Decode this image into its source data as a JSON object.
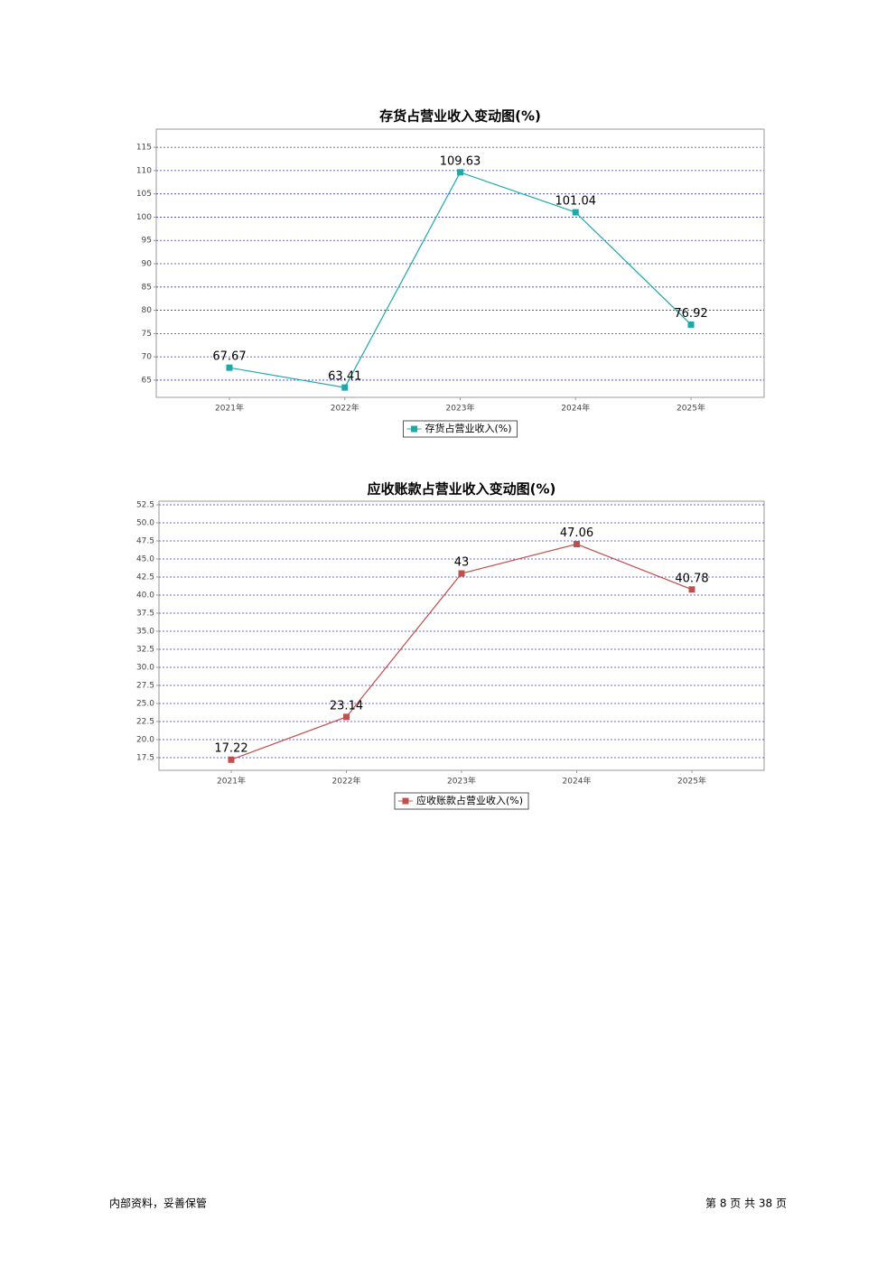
{
  "chart_data": [
    {
      "type": "line",
      "title": "存货占营业收入变动图(%)",
      "categories": [
        "2021年",
        "2022年",
        "2023年",
        "2024年",
        "2025年"
      ],
      "series": [
        {
          "name": "存货占营业收入(%)",
          "color": "#1fa8a8",
          "values": [
            67.67,
            63.41,
            109.63,
            101.04,
            76.92
          ]
        }
      ],
      "ylim": [
        61.3,
        118.9
      ],
      "yticks": [
        65,
        70,
        75,
        80,
        85,
        90,
        95,
        100,
        105,
        110,
        115
      ],
      "grid": true,
      "legend": "bottom"
    },
    {
      "type": "line",
      "title": "应收账款占营业收入变动图(%)",
      "categories": [
        "2021年",
        "2022年",
        "2023年",
        "2024年",
        "2025年"
      ],
      "series": [
        {
          "name": "应收账款占营业收入(%)",
          "color": "#c0504d",
          "values": [
            17.22,
            23.14,
            43,
            47.06,
            40.78
          ]
        }
      ],
      "ylim": [
        15.75,
        53
      ],
      "yticks": [
        17.5,
        {
          "value": 20,
          "label": "20.0"
        },
        22.5,
        {
          "value": 25,
          "label": "25.0"
        },
        27.5,
        {
          "value": 30,
          "label": "30.0"
        },
        32.5,
        {
          "value": 35,
          "label": "35.0"
        },
        37.5,
        {
          "value": 40,
          "label": "40.0"
        },
        42.5,
        {
          "value": 45,
          "label": "45.0"
        },
        47.5,
        {
          "value": 50,
          "label": "50.0"
        },
        52.5
      ],
      "grid": true,
      "legend": "bottom"
    }
  ],
  "footer": {
    "left": "内部资料，妥善保管",
    "right": "第 8 页 共 38 页"
  }
}
